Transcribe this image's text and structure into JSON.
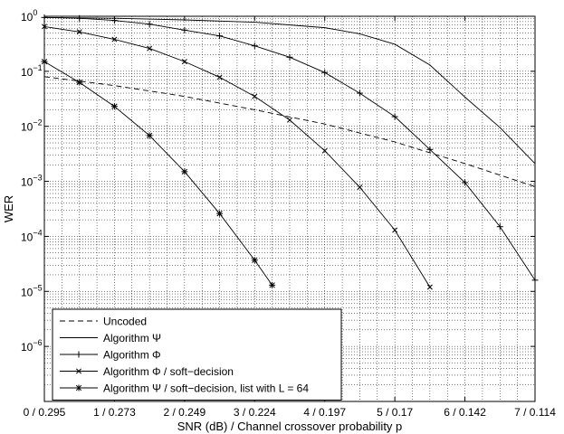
{
  "chart_data": {
    "type": "line",
    "xlabel": "SNR (dB) / Channel crossover probability p",
    "ylabel": "WER",
    "x_ticks": [
      {
        "value": 0,
        "label": "0 / 0.295"
      },
      {
        "value": 1,
        "label": "1 / 0.273"
      },
      {
        "value": 2,
        "label": "2 / 0.249"
      },
      {
        "value": 3,
        "label": "3 / 0.224"
      },
      {
        "value": 4,
        "label": "4 / 0.197"
      },
      {
        "value": 5,
        "label": "5 / 0.17"
      },
      {
        "value": 6,
        "label": "6 / 0.142"
      },
      {
        "value": 7,
        "label": "7 / 0.114"
      }
    ],
    "y_ticks": [
      {
        "value": 1,
        "base": "10",
        "exp": "0"
      },
      {
        "value": 0.1,
        "base": "10",
        "exp": "−1"
      },
      {
        "value": 0.01,
        "base": "10",
        "exp": "−2"
      },
      {
        "value": 0.001,
        "base": "10",
        "exp": "−3"
      },
      {
        "value": 0.0001,
        "base": "10",
        "exp": "−4"
      },
      {
        "value": 1e-05,
        "base": "10",
        "exp": "−5"
      },
      {
        "value": 1e-06,
        "base": "10",
        "exp": "−6"
      }
    ],
    "xlim": [
      0,
      7
    ],
    "ylim": [
      1e-07,
      1
    ],
    "yscale": "log",
    "grid": true,
    "legend_position": "bottom-left",
    "series": [
      {
        "name": "Uncoded",
        "style": "dashed",
        "marker": "none",
        "x": [
          0,
          1,
          2,
          3,
          4,
          5,
          6,
          7
        ],
        "y": [
          0.08,
          0.055,
          0.035,
          0.02,
          0.011,
          0.0052,
          0.0021,
          0.0008
        ]
      },
      {
        "name": "Algorithm Ψ",
        "style": "solid",
        "marker": "none",
        "x": [
          0,
          1,
          2,
          3,
          4,
          4.5,
          5,
          5.5,
          6,
          6.5,
          7
        ],
        "y": [
          0.95,
          0.92,
          0.86,
          0.78,
          0.62,
          0.48,
          0.31,
          0.13,
          0.034,
          0.0095,
          0.0021
        ]
      },
      {
        "name": "Algorithm Φ",
        "style": "solid",
        "marker": "plus",
        "x": [
          0,
          0.5,
          1,
          1.5,
          2,
          2.5,
          3,
          3.5,
          4,
          4.5,
          5,
          5.5,
          6,
          6.5,
          7
        ],
        "y": [
          0.95,
          0.92,
          0.84,
          0.72,
          0.56,
          0.44,
          0.29,
          0.18,
          0.095,
          0.04,
          0.015,
          0.0038,
          0.00095,
          0.00015,
          1.6e-05
        ]
      },
      {
        "name": "Algorithm Φ / soft−decision",
        "style": "solid",
        "marker": "x",
        "x": [
          0,
          0.5,
          1,
          1.5,
          2,
          2.5,
          3,
          3.5,
          4,
          4.5,
          5,
          5.5
        ],
        "y": [
          0.65,
          0.52,
          0.38,
          0.26,
          0.15,
          0.078,
          0.035,
          0.013,
          0.0036,
          0.00078,
          0.00013,
          1.2e-05
        ]
      },
      {
        "name": "Algorithm Ψ / soft−decision, list with L = 64",
        "style": "solid",
        "marker": "star",
        "x": [
          0,
          0.5,
          1,
          1.5,
          2,
          2.5,
          3,
          3.25
        ],
        "y": [
          0.15,
          0.063,
          0.023,
          0.0068,
          0.0015,
          0.00026,
          3.7e-05,
          1.3e-05
        ]
      }
    ]
  }
}
